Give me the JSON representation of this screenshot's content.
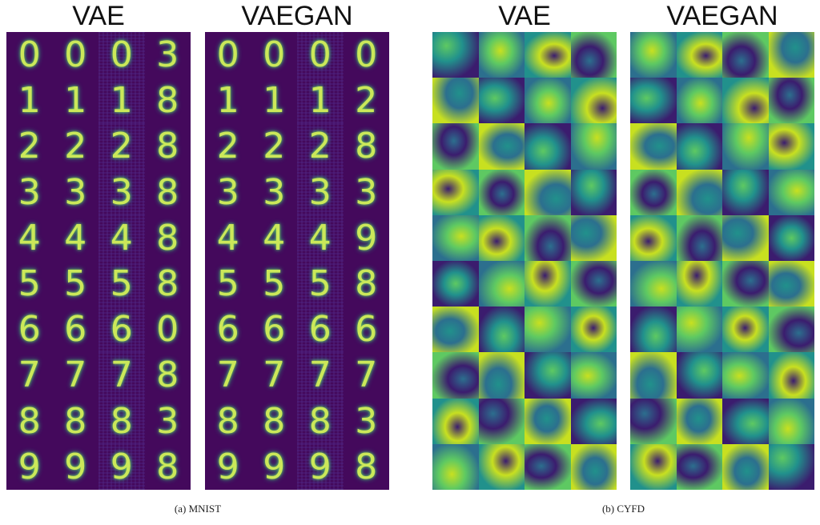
{
  "figure": {
    "titles": [
      "VAE",
      "VAEGAN",
      "VAE",
      "VAEGAN"
    ],
    "captions": {
      "a": "(a) MNIST",
      "b": "(b) CYFD"
    }
  },
  "mnist": {
    "vae_grid": [
      [
        "0",
        "0",
        "0",
        "3"
      ],
      [
        "1",
        "1",
        "1",
        "8"
      ],
      [
        "2",
        "2",
        "2",
        "8"
      ],
      [
        "3",
        "3",
        "3",
        "8"
      ],
      [
        "4",
        "4",
        "4",
        "8"
      ],
      [
        "5",
        "5",
        "5",
        "8"
      ],
      [
        "6",
        "6",
        "6",
        "0"
      ],
      [
        "7",
        "7",
        "7",
        "8"
      ],
      [
        "8",
        "8",
        "8",
        "3"
      ],
      [
        "9",
        "9",
        "9",
        "8"
      ]
    ],
    "vaegan_grid": [
      [
        "0",
        "0",
        "0",
        "0"
      ],
      [
        "1",
        "1",
        "1",
        "2"
      ],
      [
        "2",
        "2",
        "2",
        "8"
      ],
      [
        "3",
        "3",
        "3",
        "3"
      ],
      [
        "4",
        "4",
        "4",
        "9"
      ],
      [
        "5",
        "5",
        "5",
        "8"
      ],
      [
        "6",
        "6",
        "6",
        "6"
      ],
      [
        "7",
        "7",
        "7",
        "7"
      ],
      [
        "8",
        "8",
        "8",
        "3"
      ],
      [
        "9",
        "9",
        "9",
        "8"
      ]
    ]
  },
  "colors": {
    "panel_bg": "#44095c",
    "digit": "#cbe85a",
    "face_palette": [
      "#3b1c6e",
      "#2c6f8e",
      "#21918c",
      "#5ec962",
      "#c8e020"
    ]
  }
}
